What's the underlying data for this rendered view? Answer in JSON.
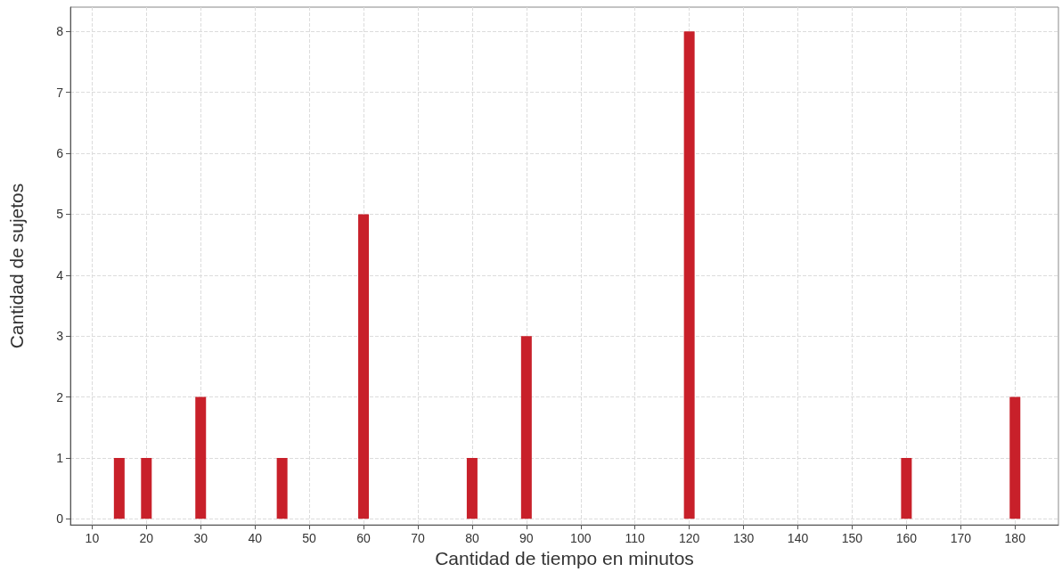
{
  "chart_data": {
    "type": "bar",
    "xlabel": "Cantidad de tiempo en minutos",
    "ylabel": "Cantidad de sujetos",
    "x": [
      15,
      20,
      30,
      45,
      60,
      80,
      90,
      120,
      160,
      180
    ],
    "values": [
      1,
      1,
      2,
      1,
      5,
      1,
      3,
      8,
      1,
      2
    ],
    "color": "#c8202a",
    "xlim": [
      6,
      188
    ],
    "xticks": [
      10,
      20,
      30,
      40,
      50,
      60,
      70,
      80,
      90,
      100,
      110,
      120,
      130,
      140,
      150,
      160,
      170,
      180
    ],
    "ylim": [
      -0.1,
      8.4
    ],
    "yticks": [
      0,
      1,
      2,
      3,
      4,
      5,
      6,
      7,
      8
    ],
    "grid": true
  }
}
